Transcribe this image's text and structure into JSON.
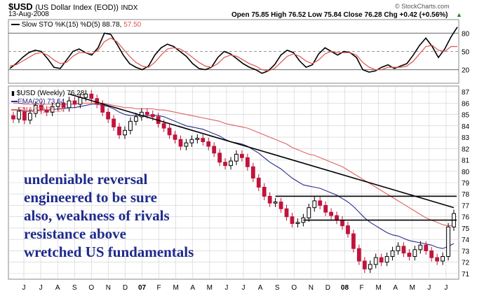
{
  "header": {
    "symbol": "$USD",
    "name": "(US Dollar Index (EOD))",
    "exchange": "INDX",
    "date": "13-Aug-2008",
    "ohlc": "Open 75.85  High 76.52  Low 75.84  Close 76.28  Chg +0.42 (+0.56%)",
    "credit": "© StockCharts.com"
  },
  "colors": {
    "price_up": "#000000",
    "price_down": "#c0143c",
    "ema20": "#2b2b8c",
    "ema50": "#e06060",
    "sto_k": "#000000",
    "sto_d": "#e05050",
    "trendline": "#000000",
    "annotation": "#1e2a8c",
    "grid": "#cfcfcf"
  },
  "chart_data": [
    {
      "type": "line",
      "panel": "stochastic",
      "legend": {
        "label": "Slow STO %K(15) %D(5) 88.78, ",
        "d_value": "57.50"
      },
      "y_ticks": [
        "80",
        "50",
        "20"
      ],
      "ylim": [
        0,
        100
      ],
      "series": [
        {
          "name": "%K",
          "values": [
            22,
            30,
            40,
            48,
            52,
            50,
            38,
            24,
            22,
            36,
            50,
            54,
            48,
            44,
            56,
            80,
            78,
            62,
            44,
            30,
            24,
            20,
            26,
            44,
            56,
            62,
            58,
            50,
            42,
            30,
            22,
            20,
            24,
            40,
            50,
            46,
            38,
            30,
            24,
            20,
            14,
            18,
            28,
            44,
            52,
            48,
            34,
            24,
            28,
            46,
            56,
            50,
            44,
            50,
            48,
            40,
            20,
            16,
            18,
            24,
            28,
            22,
            26,
            30,
            44,
            60,
            72,
            58,
            40,
            54,
            74,
            90
          ]
        },
        {
          "name": "%D",
          "values": [
            26,
            28,
            34,
            40,
            46,
            48,
            44,
            36,
            30,
            32,
            42,
            48,
            48,
            46,
            52,
            66,
            72,
            66,
            54,
            42,
            32,
            26,
            24,
            32,
            44,
            54,
            56,
            54,
            48,
            40,
            32,
            26,
            24,
            30,
            40,
            44,
            42,
            36,
            30,
            26,
            20,
            18,
            22,
            32,
            42,
            46,
            42,
            34,
            30,
            36,
            46,
            50,
            48,
            48,
            48,
            44,
            32,
            24,
            20,
            20,
            24,
            24,
            24,
            26,
            34,
            46,
            58,
            60,
            52,
            50,
            58,
            58
          ]
        }
      ]
    },
    {
      "type": "candlestick",
      "panel": "price",
      "legend": [
        "$USD (Weekly) 76.28",
        "EMA(20) 73.64",
        "EMA(50) 75.24"
      ],
      "y_ticks": [
        "87",
        "86",
        "85",
        "84",
        "83",
        "82",
        "81",
        "80",
        "79",
        "78",
        "77",
        "76",
        "75",
        "74",
        "73",
        "72",
        "71"
      ],
      "ylim": [
        70.5,
        87.5
      ],
      "x_ticks": [
        "J",
        "J",
        "A",
        "S",
        "O",
        "N",
        "D",
        "07",
        "F",
        "M",
        "A",
        "M",
        "J",
        "J",
        "A",
        "S",
        "O",
        "N",
        "D",
        "08",
        "F",
        "M",
        "A",
        "M",
        "J",
        "J",
        "A"
      ],
      "close": [
        84.6,
        85.3,
        84.5,
        85.1,
        85.8,
        85.4,
        85.2,
        85.7,
        86.0,
        85.6,
        86.2,
        85.9,
        86.5,
        86.8,
        86.4,
        85.9,
        85.2,
        84.6,
        83.9,
        83.2,
        83.6,
        84.4,
        84.8,
        85.2,
        85.0,
        84.8,
        84.2,
        83.8,
        83.2,
        82.8,
        82.2,
        82.5,
        82.8,
        82.9,
        82.6,
        82.2,
        81.6,
        80.8,
        80.5,
        80.9,
        81.5,
        81.2,
        80.4,
        79.4,
        78.6,
        77.8,
        77.2,
        77.3,
        76.7,
        76.0,
        75.4,
        75.5,
        75.9,
        76.8,
        77.4,
        77.0,
        76.4,
        76.1,
        75.7,
        75.2,
        74.5,
        73.2,
        72.1,
        71.4,
        71.8,
        72.4,
        72.0,
        72.5,
        73.0,
        73.4,
        72.8,
        72.5,
        73.1,
        73.5,
        73.0,
        72.4,
        72.1,
        72.5,
        75.1,
        76.28
      ],
      "lines": [
        {
          "name": "EMA(20)",
          "values": [
            85.4,
            85.4,
            85.3,
            85.3,
            85.3,
            85.4,
            85.4,
            85.4,
            85.5,
            85.5,
            85.6,
            85.6,
            85.7,
            85.8,
            85.9,
            85.9,
            85.8,
            85.7,
            85.5,
            85.2,
            85.0,
            84.9,
            84.9,
            84.9,
            84.9,
            84.9,
            84.9,
            84.8,
            84.6,
            84.4,
            84.2,
            84.0,
            83.9,
            83.8,
            83.7,
            83.5,
            83.3,
            83.1,
            82.8,
            82.6,
            82.5,
            82.4,
            82.2,
            81.9,
            81.6,
            81.2,
            80.8,
            80.5,
            80.2,
            79.8,
            79.4,
            79.1,
            78.8,
            78.7,
            78.6,
            78.5,
            78.3,
            78.1,
            77.9,
            77.6,
            77.3,
            76.9,
            76.4,
            75.9,
            75.5,
            75.2,
            74.9,
            74.6,
            74.4,
            74.3,
            74.1,
            73.9,
            73.8,
            73.7,
            73.6,
            73.5,
            73.3,
            73.2,
            73.4,
            73.64
          ]
        },
        {
          "name": "EMA(50)",
          "values": [
            86.0,
            86.0,
            85.9,
            85.9,
            85.9,
            85.9,
            85.9,
            85.9,
            85.9,
            85.9,
            85.9,
            85.9,
            86.0,
            86.0,
            86.0,
            86.0,
            86.0,
            85.9,
            85.8,
            85.7,
            85.6,
            85.6,
            85.5,
            85.5,
            85.5,
            85.5,
            85.4,
            85.4,
            85.3,
            85.2,
            85.1,
            85.0,
            84.9,
            84.8,
            84.7,
            84.6,
            84.5,
            84.4,
            84.2,
            84.1,
            84.0,
            83.9,
            83.8,
            83.6,
            83.4,
            83.2,
            83.0,
            82.8,
            82.6,
            82.4,
            82.1,
            81.9,
            81.7,
            81.5,
            81.4,
            81.2,
            81.0,
            80.8,
            80.6,
            80.4,
            80.1,
            79.8,
            79.5,
            79.2,
            78.9,
            78.6,
            78.3,
            78.0,
            77.7,
            77.4,
            77.1,
            76.8,
            76.5,
            76.2,
            75.9,
            75.7,
            75.5,
            75.3,
            75.2,
            75.24
          ]
        }
      ],
      "trendline": [
        [
          10,
          86.8
        ],
        [
          79,
          76.8
        ]
      ],
      "horizontal_lines": [
        {
          "from_bar": 47,
          "to_bar": 79,
          "value": 77.8
        },
        {
          "from_bar": 52,
          "to_bar": 79,
          "value": 75.7
        }
      ]
    }
  ],
  "annotation": {
    "lines": [
      "undeniable reversal",
      "engineered to be sure",
      "also, weakness of rivals",
      "resistance above",
      "wretched US fundamentals"
    ]
  }
}
